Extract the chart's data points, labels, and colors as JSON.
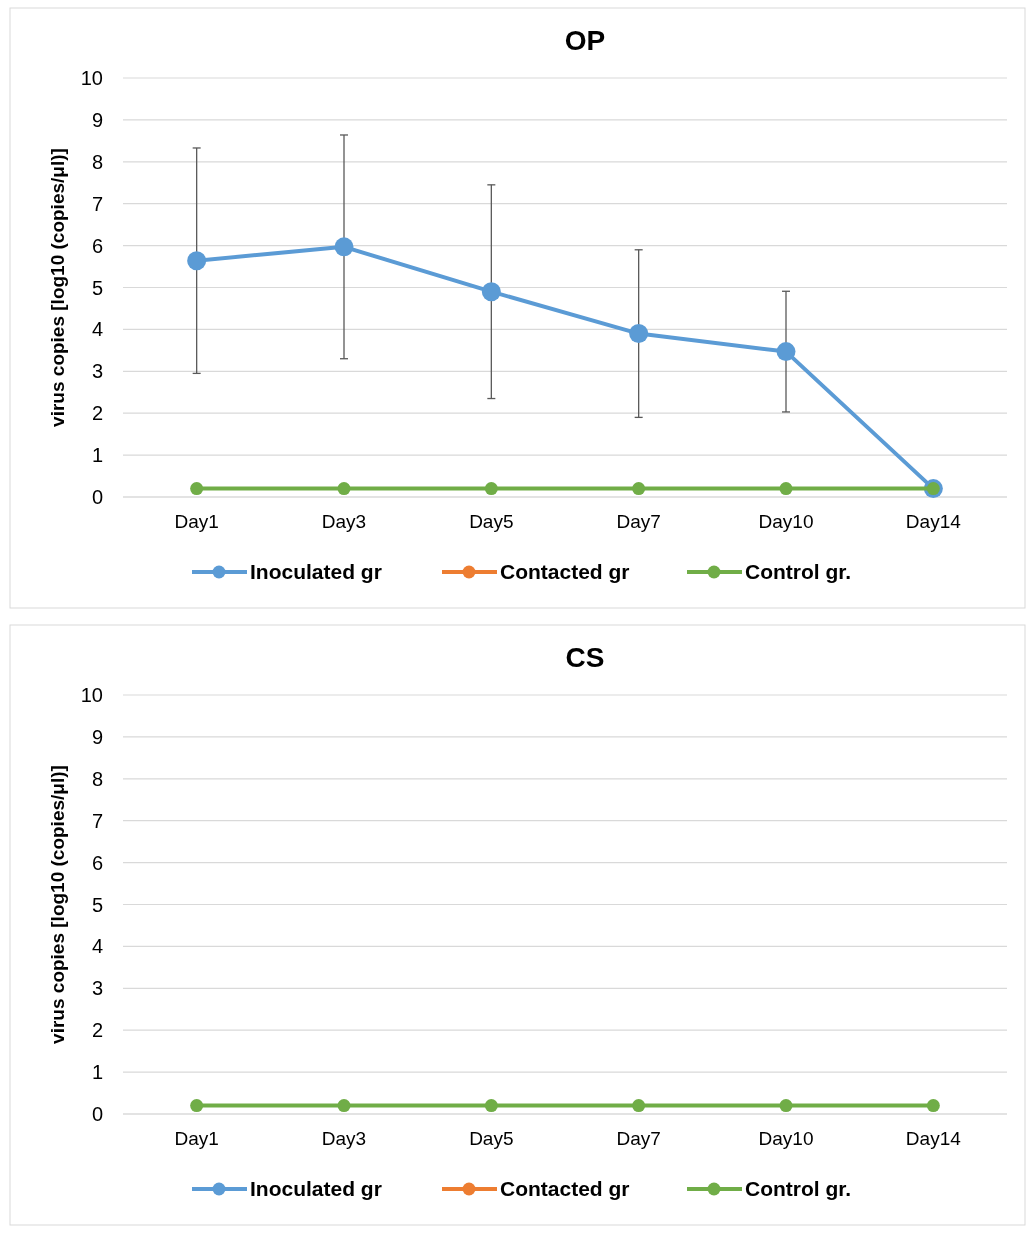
{
  "chart_data": [
    {
      "type": "line",
      "title": "OP",
      "ylabel": "virus copies [log10 (copies/μl)]",
      "categories": [
        "Day1",
        "Day3",
        "Day5",
        "Day7",
        "Day10",
        "Day14"
      ],
      "ylim": [
        0,
        10
      ],
      "yticks": [
        0,
        1,
        2,
        3,
        4,
        5,
        6,
        7,
        8,
        9,
        10
      ],
      "grid": "y",
      "legend": "bottom",
      "marker": "circle",
      "line_style": "solid",
      "series": [
        {
          "name": "Inoculated gr",
          "color": "#5b9bd5",
          "values": [
            5.64,
            5.97,
            4.9,
            3.9,
            3.47,
            0.2
          ],
          "errors": [
            2.69,
            2.67,
            2.55,
            2.0,
            1.44,
            null
          ]
        },
        {
          "name": "Contacted gr",
          "color": "#ed7d31",
          "values": [
            null,
            null,
            null,
            null,
            null,
            null
          ]
        },
        {
          "name": "Control gr.",
          "color": "#70ad47",
          "values": [
            0.2,
            0.2,
            0.2,
            0.2,
            0.2,
            0.2
          ]
        }
      ]
    },
    {
      "type": "line",
      "title": "CS",
      "ylabel": "virus copies [log10 (copies/μl)]",
      "categories": [
        "Day1",
        "Day3",
        "Day5",
        "Day7",
        "Day10",
        "Day14"
      ],
      "ylim": [
        0,
        10
      ],
      "yticks": [
        0,
        1,
        2,
        3,
        4,
        5,
        6,
        7,
        8,
        9,
        10
      ],
      "grid": "y",
      "legend": "bottom",
      "marker": "circle",
      "line_style": "solid",
      "series": [
        {
          "name": "Inoculated gr",
          "color": "#5b9bd5",
          "values": [
            null,
            null,
            null,
            null,
            null,
            null
          ]
        },
        {
          "name": "Contacted gr",
          "color": "#ed7d31",
          "values": [
            null,
            null,
            null,
            null,
            null,
            null
          ]
        },
        {
          "name": "Control gr.",
          "color": "#70ad47",
          "values": [
            0.2,
            0.2,
            0.2,
            0.2,
            0.2,
            0.2
          ]
        }
      ]
    }
  ]
}
